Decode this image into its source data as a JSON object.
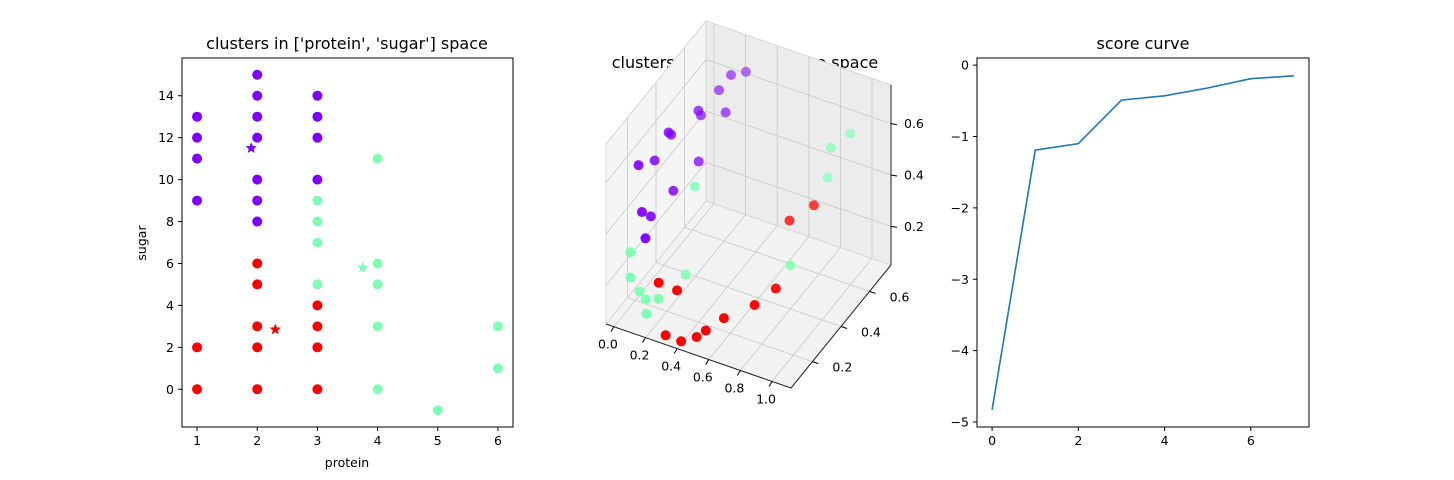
{
  "colors": {
    "cluster0": "#8000ff",
    "cluster1": "#80ffb4",
    "cluster2": "#ff0000",
    "line": "#1f77b4"
  },
  "chart_data": [
    {
      "type": "scatter",
      "title": "clusters in ['protein', 'sugar'] space",
      "xlabel": "protein",
      "ylabel": "sugar",
      "xlim": [
        0.75,
        6.25
      ],
      "ylim": [
        -1.8,
        15.8
      ],
      "xticks": [
        "1",
        "2",
        "3",
        "4",
        "5",
        "6"
      ],
      "xtick_values": [
        1,
        2,
        3,
        4,
        5,
        6
      ],
      "yticks": [
        "0",
        "2",
        "4",
        "6",
        "8",
        "10",
        "12",
        "14"
      ],
      "ytick_values": [
        0,
        2,
        4,
        6,
        8,
        10,
        12,
        14
      ],
      "series": [
        {
          "cluster": 0,
          "color": "#8000ff",
          "points": [
            [
              1,
              13
            ],
            [
              1,
              12
            ],
            [
              1,
              11
            ],
            [
              1,
              9
            ],
            [
              2,
              15
            ],
            [
              2,
              14
            ],
            [
              2,
              13
            ],
            [
              2,
              12
            ],
            [
              2,
              10
            ],
            [
              2,
              9
            ],
            [
              2,
              8
            ],
            [
              3,
              14
            ],
            [
              3,
              13
            ],
            [
              3,
              12
            ],
            [
              3,
              10
            ]
          ]
        },
        {
          "cluster": 1,
          "color": "#80ffb4",
          "points": [
            [
              3,
              9
            ],
            [
              3,
              8
            ],
            [
              3,
              7
            ],
            [
              3,
              5
            ],
            [
              4,
              11
            ],
            [
              4,
              6
            ],
            [
              4,
              5
            ],
            [
              4,
              3
            ],
            [
              4,
              0
            ],
            [
              5,
              -1
            ],
            [
              6,
              3
            ],
            [
              6,
              1
            ]
          ]
        },
        {
          "cluster": 2,
          "color": "#ff0000",
          "points": [
            [
              1,
              2
            ],
            [
              1,
              0
            ],
            [
              2,
              6
            ],
            [
              2,
              5
            ],
            [
              2,
              3
            ],
            [
              2,
              2
            ],
            [
              2,
              0
            ],
            [
              3,
              4
            ],
            [
              3,
              3
            ],
            [
              3,
              2
            ],
            [
              3,
              0
            ]
          ]
        }
      ],
      "centroids": [
        {
          "cluster": 0,
          "color": "#8000ff",
          "x": 1.9,
          "y": 11.5
        },
        {
          "cluster": 1,
          "color": "#80ffb4",
          "x": 3.75,
          "y": 5.8
        },
        {
          "cluster": 2,
          "color": "#ff0000",
          "x": 2.3,
          "y": 2.85
        }
      ]
    },
    {
      "type": "scatter3d",
      "title": "clusters in cluster-distance space",
      "xticks": [
        "0.0",
        "0.2",
        "0.4",
        "0.6",
        "0.8",
        "1.0"
      ],
      "xtick_values": [
        0,
        0.2,
        0.4,
        0.6,
        0.8,
        1.0
      ],
      "yticks": [
        "0.2",
        "0.4",
        "0.6"
      ],
      "ytick_values": [
        0.2,
        0.4,
        0.6
      ],
      "zticks": [
        "0.2",
        "0.4",
        "0.6"
      ],
      "ztick_values": [
        0.2,
        0.4,
        0.6
      ],
      "xlim": [
        -0.05,
        1.12
      ],
      "ylim": [
        0.05,
        0.75
      ],
      "zlim": [
        0.05,
        0.75
      ],
      "series": [
        {
          "cluster": 0,
          "color": "#8000ff",
          "points": [
            [
              0.02,
              0.2,
              0.58
            ],
            [
              0.05,
              0.28,
              0.55
            ],
            [
              0.1,
              0.34,
              0.62
            ],
            [
              0.12,
              0.3,
              0.66
            ],
            [
              0.2,
              0.42,
              0.68
            ],
            [
              0.18,
              0.46,
              0.63
            ],
            [
              0.24,
              0.52,
              0.7
            ],
            [
              0.28,
              0.56,
              0.74
            ],
            [
              0.3,
              0.5,
              0.64
            ],
            [
              0.06,
              0.18,
              0.42
            ],
            [
              0.08,
              0.22,
              0.38
            ],
            [
              0.15,
              0.3,
              0.44
            ],
            [
              0.22,
              0.4,
              0.5
            ],
            [
              0.32,
              0.62,
              0.72
            ],
            [
              0.1,
              0.16,
              0.34
            ]
          ]
        },
        {
          "cluster": 1,
          "color": "#80ffb4",
          "points": [
            [
              0.04,
              0.12,
              0.3
            ],
            [
              0.06,
              0.1,
              0.22
            ],
            [
              0.1,
              0.12,
              0.16
            ],
            [
              0.12,
              0.14,
              0.12
            ],
            [
              0.16,
              0.1,
              0.1
            ],
            [
              0.2,
              0.14,
              0.14
            ],
            [
              0.3,
              0.22,
              0.2
            ],
            [
              0.25,
              0.34,
              0.45
            ],
            [
              0.92,
              0.55,
              0.6
            ],
            [
              0.98,
              0.62,
              0.62
            ],
            [
              0.9,
              0.55,
              0.48
            ],
            [
              0.8,
              0.4,
              0.22
            ]
          ]
        },
        {
          "cluster": 2,
          "color": "#ff0000",
          "points": [
            [
              0.22,
              0.12,
              0.22
            ],
            [
              0.3,
              0.16,
              0.18
            ],
            [
              0.3,
              0.08,
              0.06
            ],
            [
              0.38,
              0.1,
              0.04
            ],
            [
              0.46,
              0.12,
              0.06
            ],
            [
              0.5,
              0.14,
              0.08
            ],
            [
              0.56,
              0.2,
              0.1
            ],
            [
              0.7,
              0.26,
              0.14
            ],
            [
              0.78,
              0.32,
              0.18
            ],
            [
              0.74,
              0.46,
              0.34
            ],
            [
              0.84,
              0.52,
              0.38
            ]
          ]
        }
      ]
    },
    {
      "type": "line",
      "title": "score curve",
      "xlim": [
        -0.35,
        7.35
      ],
      "ylim": [
        -5.07,
        0.1
      ],
      "xticks": [
        "0",
        "2",
        "4",
        "6"
      ],
      "xtick_values": [
        0,
        2,
        4,
        6
      ],
      "yticks": [
        "0",
        "−1",
        "−2",
        "−3",
        "−4",
        "−5"
      ],
      "ytick_values": [
        0,
        -1,
        -2,
        -3,
        -4,
        -5
      ],
      "x": [
        0,
        1,
        2,
        3,
        4,
        5,
        6,
        7
      ],
      "y": [
        -4.83,
        -1.19,
        -1.1,
        -0.49,
        -0.43,
        -0.32,
        -0.19,
        -0.15
      ]
    }
  ]
}
